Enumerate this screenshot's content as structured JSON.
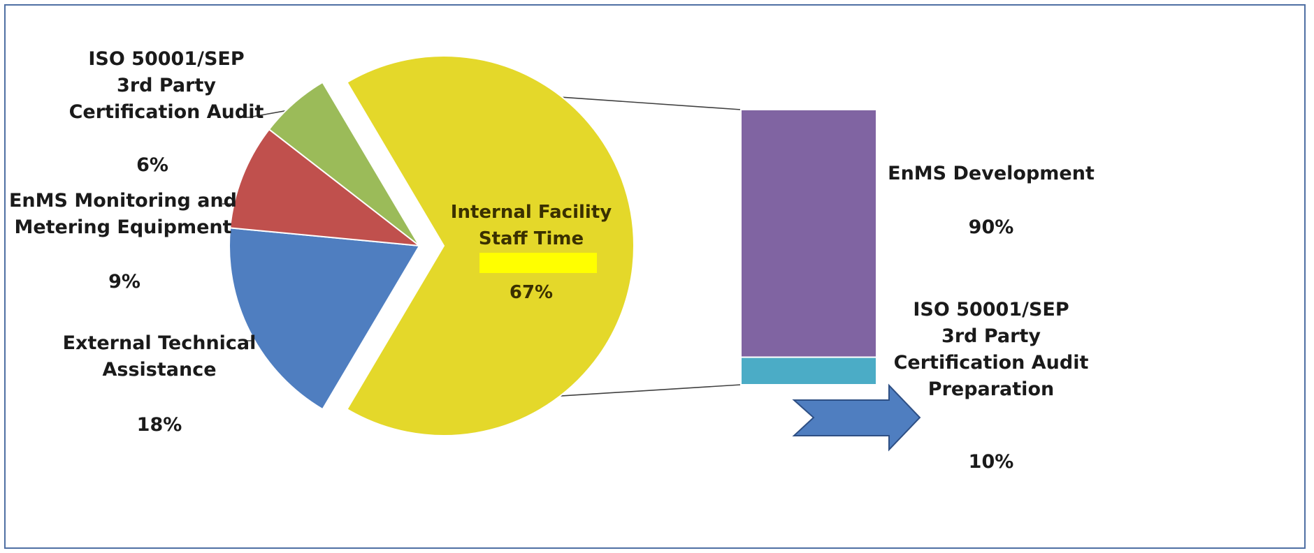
{
  "colors": {
    "internal": "#e4d82a",
    "external": "#4f7ec0",
    "monitoring": "#c0504d",
    "iso_audit": "#9bbb59",
    "enms_dev": "#8064a2",
    "prep": "#4bacc6",
    "highlight": "#ffff00",
    "arrow": "#4f7ec0"
  },
  "chart_data": {
    "type": "pie",
    "variant": "bar-of-pie",
    "pie": {
      "slices": [
        {
          "name_lines": [
            "Internal Facility",
            "Staff Time"
          ],
          "value": 67,
          "label": "67%",
          "color_key": "internal",
          "exploded": true
        },
        {
          "name_lines": [
            "External Technical",
            "Assistance"
          ],
          "value": 18,
          "label": "18%",
          "color_key": "external",
          "exploded": false
        },
        {
          "name_lines": [
            "EnMS Monitoring and",
            "Metering Equipment"
          ],
          "value": 9,
          "label": "9%",
          "color_key": "monitoring",
          "exploded": false
        },
        {
          "name_lines": [
            "ISO 50001/SEP",
            "3rd Party",
            "Certification Audit"
          ],
          "value": 6,
          "label": "6%",
          "color_key": "iso_audit",
          "exploded": false
        }
      ]
    },
    "bar": {
      "breaks_out": "Internal Facility Staff Time",
      "segments": [
        {
          "name_lines": [
            "EnMS Development"
          ],
          "value": 90,
          "label": "90%",
          "color_key": "enms_dev"
        },
        {
          "name_lines": [
            "ISO 50001/SEP",
            "3rd Party",
            "Certification Audit",
            "Preparation"
          ],
          "value": 10,
          "label": "10%",
          "color_key": "prep"
        }
      ]
    }
  }
}
